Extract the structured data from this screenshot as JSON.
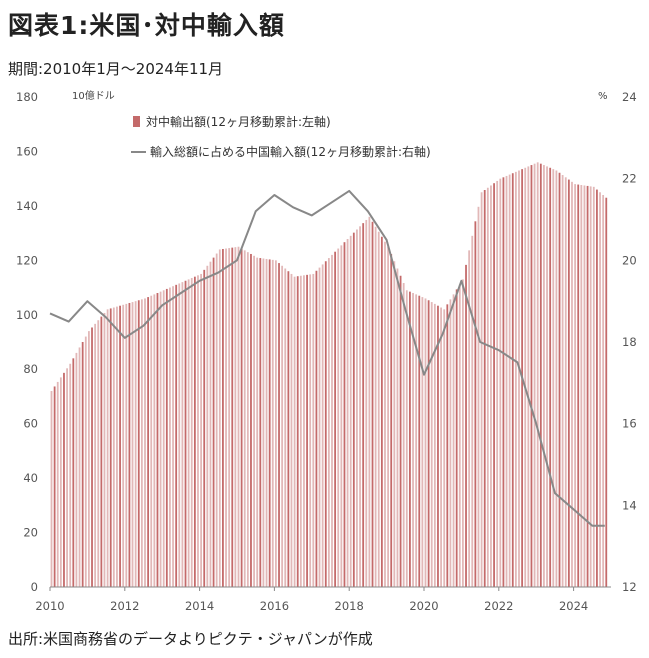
{
  "title": "図表1:米国･対中輸入額",
  "period": "期間:2010年1月～2024年11月",
  "source": "出所:米国商務省のデータよりピクテ・ジャパンが作成",
  "chart_data": {
    "type": "bar+line",
    "left_unit": "10億ドル",
    "right_unit": "%",
    "left_ylim": [
      0,
      180
    ],
    "left_ticks": [
      "0",
      "20",
      "40",
      "60",
      "80",
      "100",
      "120",
      "140",
      "160",
      "180"
    ],
    "right_ylim": [
      12,
      24
    ],
    "right_ticks": [
      "12",
      "14",
      "16",
      "18",
      "20",
      "22",
      "24"
    ],
    "x_ticks": [
      "2010",
      "2012",
      "2014",
      "2016",
      "2018",
      "2020",
      "2022",
      "2024"
    ],
    "series": [
      {
        "name": "対中輸出額(12ヶ月移動累計:左軸)",
        "type": "bar",
        "color": "#c46a6a",
        "x": [
          "2010-01",
          "2010-07",
          "2011-01",
          "2011-07",
          "2012-01",
          "2012-07",
          "2013-01",
          "2013-07",
          "2014-01",
          "2014-07",
          "2015-01",
          "2015-07",
          "2016-01",
          "2016-07",
          "2017-01",
          "2017-07",
          "2018-01",
          "2018-07",
          "2019-01",
          "2019-07",
          "2020-01",
          "2020-07",
          "2021-01",
          "2021-07",
          "2022-01",
          "2022-07",
          "2023-01",
          "2023-07",
          "2024-01",
          "2024-07",
          "2024-11"
        ],
        "values": [
          72,
          82,
          94,
          102,
          104,
          106,
          109,
          112,
          115,
          124,
          125,
          121,
          120,
          114,
          115,
          122,
          129,
          136,
          125,
          109,
          106,
          102,
          113,
          145,
          150,
          153,
          156,
          153,
          148,
          147,
          143
        ]
      },
      {
        "name": "輸入総額に占める中国輸入額(12ヶ月移動累計:右軸)",
        "type": "line",
        "color": "#888888",
        "x": [
          "2010-01",
          "2010-07",
          "2011-01",
          "2011-07",
          "2012-01",
          "2012-07",
          "2013-01",
          "2013-07",
          "2014-01",
          "2014-07",
          "2015-01",
          "2015-07",
          "2016-01",
          "2016-07",
          "2017-01",
          "2017-07",
          "2018-01",
          "2018-07",
          "2019-01",
          "2019-07",
          "2020-01",
          "2020-07",
          "2021-01",
          "2021-07",
          "2022-01",
          "2022-07",
          "2023-01",
          "2023-07",
          "2024-01",
          "2024-07",
          "2024-11"
        ],
        "values": [
          18.7,
          18.5,
          19.0,
          18.6,
          18.1,
          18.4,
          18.9,
          19.2,
          19.5,
          19.7,
          20.0,
          21.2,
          21.6,
          21.3,
          21.1,
          21.4,
          21.7,
          21.2,
          20.5,
          18.8,
          17.2,
          18.2,
          19.5,
          18.0,
          17.8,
          17.5,
          16.0,
          14.3,
          13.9,
          13.5,
          13.5
        ]
      }
    ]
  }
}
